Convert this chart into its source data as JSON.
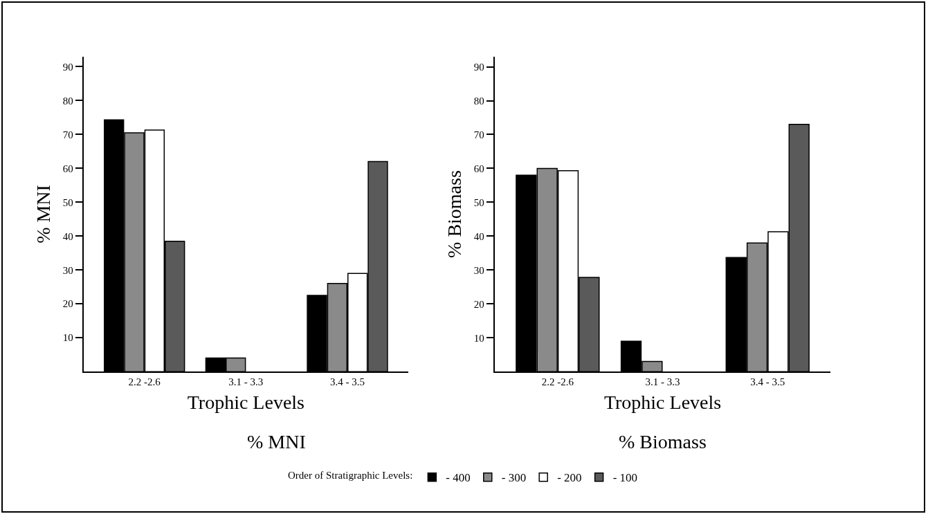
{
  "chart_data": [
    {
      "type": "bar",
      "ylabel": "% MNI",
      "xlabel": "Trophic Levels",
      "annotations": [
        "% MNI"
      ],
      "legend_title": "Order of Stratigraphic Levels:",
      "legend": "bottom",
      "grid": false,
      "categories": [
        "2.2 -2.6",
        "3.1 - 3.3",
        "3.4 - 3.5"
      ],
      "ylim": [
        0,
        93
      ],
      "yticks": [
        10,
        20,
        30,
        40,
        50,
        60,
        70,
        80,
        90
      ],
      "series": [
        {
          "name": "- 400",
          "color": "#000000",
          "values": [
            74.3,
            4,
            22.5
          ]
        },
        {
          "name": "- 300",
          "color": "#8a8a8a",
          "values": [
            70.5,
            4,
            26
          ]
        },
        {
          "name": "- 200",
          "color": "#ffffff",
          "values": [
            71.3,
            null,
            29
          ]
        },
        {
          "name": "- 100",
          "color": "#5a5a5a",
          "values": [
            38.5,
            null,
            62
          ]
        }
      ]
    },
    {
      "type": "bar",
      "ylabel": "% Biomass",
      "xlabel": "Trophic Levels",
      "annotations": [
        "% Biomass"
      ],
      "grid": false,
      "categories": [
        "2.2 -2.6",
        "3.1 - 3.3",
        "3.4 - 3.5"
      ],
      "ylim": [
        0,
        93
      ],
      "yticks": [
        10,
        20,
        30,
        40,
        50,
        60,
        70,
        80,
        90
      ],
      "series": [
        {
          "color": "#000000",
          "values": [
            58,
            9,
            33.7
          ]
        },
        {
          "color": "#8a8a8a",
          "values": [
            60,
            3,
            38
          ]
        },
        {
          "color": "#ffffff",
          "values": [
            59.3,
            null,
            41.3
          ]
        },
        {
          "color": "#5a5a5a",
          "values": [
            27.8,
            null,
            73
          ]
        }
      ]
    }
  ]
}
